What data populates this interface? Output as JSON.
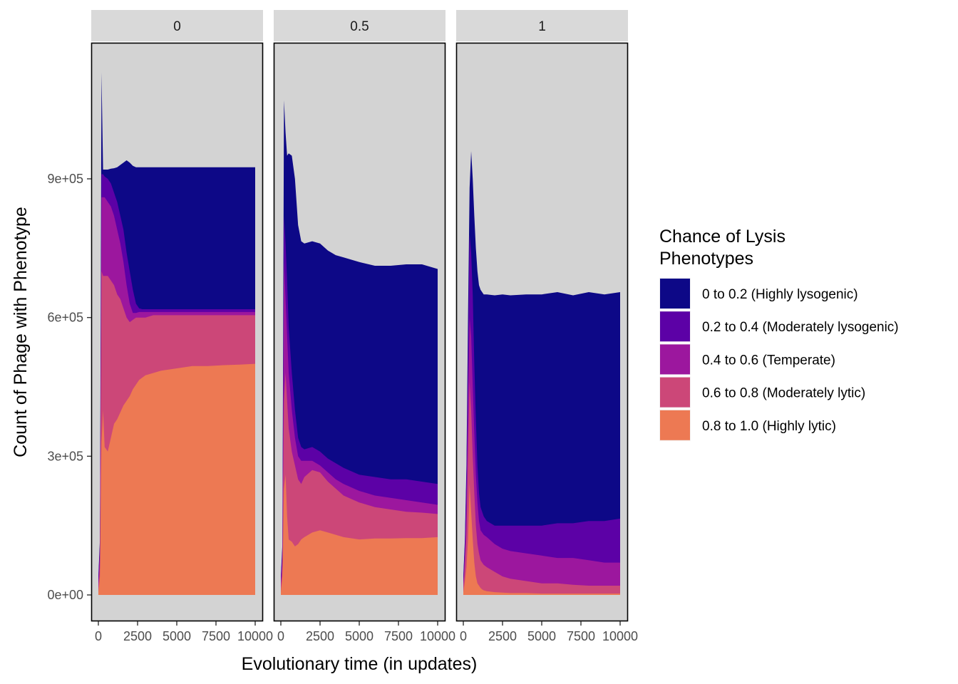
{
  "chart_data": {
    "type": "area",
    "stacked": true,
    "xlabel": "Evolutionary time (in updates)",
    "ylabel": "Count of Phage with Phenotype",
    "xlim": [
      0,
      10000
    ],
    "ylim": [
      -40000,
      1250000
    ],
    "x_ticks": [
      0,
      2500,
      5000,
      7500,
      10000
    ],
    "x_tick_labels": [
      "0",
      "2500",
      "5000",
      "7500",
      "10000"
    ],
    "y_ticks": [
      0,
      300000,
      600000,
      900000
    ],
    "y_tick_labels": [
      "0e+00",
      "3e+05",
      "6e+05",
      "9e+05"
    ],
    "grid": false,
    "legend": {
      "title": "Chance of Lysis\n Phenotypes",
      "position": "right",
      "entries": [
        {
          "label": "0 to 0.2 (Highly lysogenic)",
          "color": "#0d0887"
        },
        {
          "label": "0.2 to 0.4 (Moderately lysogenic)",
          "color": "#5c01a6"
        },
        {
          "label": "0.4 to 0.6 (Temperate)",
          "color": "#9c179e"
        },
        {
          "label": "0.6 to 0.8 (Moderately lytic)",
          "color": "#cc4778"
        },
        {
          "label": "0.8 to 1.0 (Highly lytic)",
          "color": "#ed7953"
        }
      ]
    },
    "panel_background": "#d3d3d3",
    "strip_background": "#d9d9d9",
    "series_order_bottom_to_top": [
      "0.8 to 1.0 (Highly lytic)",
      "0.6 to 0.8 (Moderately lytic)",
      "0.4 to 0.6 (Temperate)",
      "0.2 to 0.4 (Moderately lysogenic)",
      "0 to 0.2 (Highly lysogenic)"
    ],
    "panels": [
      {
        "label": "0",
        "x": [
          0,
          100,
          200,
          300,
          400,
          600,
          800,
          1000,
          1200,
          1400,
          1600,
          1800,
          2000,
          2200,
          2400,
          2600,
          2800,
          3000,
          3500,
          4000,
          5000,
          6000,
          7000,
          8000,
          9000,
          10000
        ],
        "cumulative_tops": {
          "highly_lytic": [
            5000,
            40000,
            330000,
            400000,
            320000,
            310000,
            340000,
            370000,
            380000,
            395000,
            410000,
            420000,
            430000,
            445000,
            455000,
            465000,
            470000,
            475000,
            480000,
            485000,
            490000,
            495000,
            495000,
            497000,
            498000,
            500000
          ],
          "moderately_lytic": [
            15000,
            60000,
            700000,
            690000,
            690000,
            690000,
            680000,
            670000,
            650000,
            640000,
            620000,
            600000,
            590000,
            595000,
            600000,
            600000,
            600000,
            600000,
            605000,
            605000,
            605000,
            605000,
            605000,
            605000,
            605000,
            605000
          ],
          "temperate": [
            25000,
            90000,
            860000,
            860000,
            860000,
            850000,
            840000,
            820000,
            790000,
            760000,
            720000,
            670000,
            630000,
            610000,
            610000,
            612000,
            612000,
            612000,
            612000,
            612000,
            612000,
            612000,
            612000,
            612000,
            612000,
            612000
          ],
          "moderately_lysogenic": [
            35000,
            110000,
            910000,
            910000,
            905000,
            900000,
            890000,
            870000,
            850000,
            820000,
            790000,
            740000,
            700000,
            660000,
            630000,
            620000,
            618000,
            618000,
            618000,
            618000,
            618000,
            618000,
            618000,
            618000,
            618000,
            618000
          ],
          "highly_lysogenic": [
            40000,
            120000,
            1130000,
            920000,
            920000,
            920000,
            922000,
            923000,
            925000,
            930000,
            935000,
            940000,
            935000,
            928000,
            925000,
            925000,
            925000,
            925000,
            925000,
            925000,
            925000,
            925000,
            925000,
            925000,
            925000,
            925000
          ]
        }
      },
      {
        "label": "0.5",
        "x": [
          0,
          100,
          200,
          300,
          400,
          500,
          700,
          900,
          1100,
          1300,
          1500,
          2000,
          2500,
          3000,
          3500,
          4000,
          5000,
          6000,
          7000,
          8000,
          9000,
          10000
        ],
        "cumulative_tops": {
          "highly_lytic": [
            5000,
            40000,
            230000,
            260000,
            170000,
            120000,
            115000,
            105000,
            110000,
            120000,
            125000,
            135000,
            140000,
            135000,
            130000,
            125000,
            120000,
            122000,
            122000,
            123000,
            123000,
            125000
          ],
          "moderately_lytic": [
            15000,
            60000,
            420000,
            480000,
            420000,
            360000,
            310000,
            280000,
            250000,
            240000,
            255000,
            270000,
            265000,
            245000,
            230000,
            215000,
            200000,
            190000,
            185000,
            180000,
            178000,
            175000
          ],
          "temperate": [
            25000,
            80000,
            720000,
            640000,
            560000,
            480000,
            400000,
            340000,
            300000,
            290000,
            290000,
            290000,
            280000,
            265000,
            250000,
            240000,
            225000,
            215000,
            210000,
            205000,
            200000,
            195000
          ],
          "moderately_lysogenic": [
            35000,
            100000,
            820000,
            760000,
            680000,
            580000,
            480000,
            400000,
            340000,
            320000,
            315000,
            320000,
            310000,
            295000,
            285000,
            275000,
            260000,
            255000,
            250000,
            250000,
            245000,
            240000
          ],
          "highly_lysogenic": [
            40000,
            110000,
            1070000,
            1000000,
            950000,
            955000,
            950000,
            900000,
            800000,
            765000,
            760000,
            765000,
            760000,
            745000,
            735000,
            730000,
            720000,
            712000,
            712000,
            715000,
            715000,
            705000
          ]
        }
      },
      {
        "label": "1",
        "x": [
          0,
          100,
          200,
          300,
          400,
          500,
          600,
          700,
          800,
          900,
          1000,
          1100,
          1200,
          1300,
          1500,
          2000,
          2500,
          3000,
          4000,
          5000,
          6000,
          7000,
          8000,
          9000,
          10000
        ],
        "cumulative_tops": {
          "highly_lytic": [
            5000,
            30000,
            60000,
            120000,
            240000,
            180000,
            120000,
            70000,
            40000,
            25000,
            20000,
            15000,
            12000,
            10000,
            8000,
            6000,
            5000,
            4000,
            4000,
            3000,
            3000,
            3000,
            3000,
            3000,
            3000
          ],
          "moderately_lytic": [
            15000,
            60000,
            130000,
            300000,
            460000,
            400000,
            300000,
            220000,
            150000,
            110000,
            90000,
            75000,
            70000,
            65000,
            60000,
            50000,
            40000,
            35000,
            30000,
            25000,
            25000,
            22000,
            20000,
            20000,
            20000
          ],
          "temperate": [
            25000,
            90000,
            200000,
            420000,
            600000,
            560000,
            450000,
            350000,
            260000,
            200000,
            160000,
            140000,
            135000,
            130000,
            125000,
            110000,
            100000,
            95000,
            90000,
            85000,
            80000,
            80000,
            75000,
            70000,
            70000
          ],
          "moderately_lysogenic": [
            35000,
            110000,
            260000,
            520000,
            780000,
            740000,
            650000,
            500000,
            380000,
            280000,
            220000,
            190000,
            180000,
            170000,
            160000,
            150000,
            150000,
            150000,
            150000,
            150000,
            155000,
            155000,
            160000,
            160000,
            165000
          ],
          "highly_lysogenic": [
            40000,
            120000,
            280000,
            600000,
            880000,
            960000,
            900000,
            820000,
            750000,
            700000,
            670000,
            660000,
            655000,
            650000,
            650000,
            648000,
            650000,
            648000,
            650000,
            650000,
            655000,
            648000,
            655000,
            650000,
            655000
          ]
        }
      }
    ]
  }
}
